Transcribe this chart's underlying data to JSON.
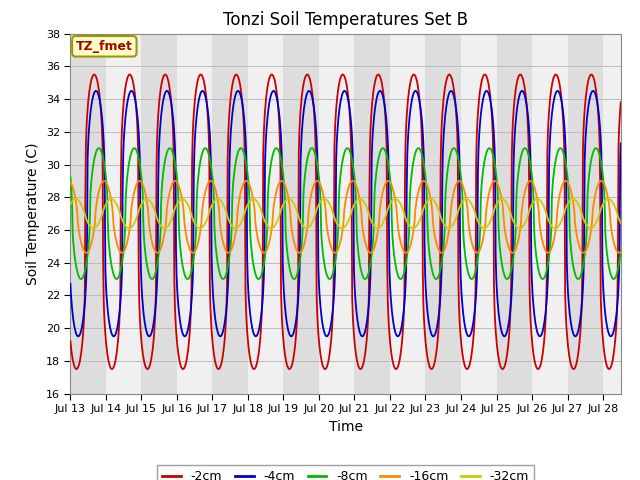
{
  "title": "Tonzi Soil Temperatures Set B",
  "xlabel": "Time",
  "ylabel": "Soil Temperature (C)",
  "ylim": [
    16,
    38
  ],
  "xtick_labels": [
    "Jul 13",
    "Jul 14",
    "Jul 15",
    "Jul 16",
    "Jul 17",
    "Jul 18",
    "Jul 19",
    "Jul 20",
    "Jul 21",
    "Jul 22",
    "Jul 23",
    "Jul 24",
    "Jul 25",
    "Jul 26",
    "Jul 27",
    "Jul 28"
  ],
  "legend_labels": [
    "-2cm",
    "-4cm",
    "-8cm",
    "-16cm",
    "-32cm"
  ],
  "line_colors": [
    "#cc0000",
    "#0000cc",
    "#00bb00",
    "#ff8800",
    "#cccc00"
  ],
  "annotation_text": "TZ_fmet",
  "annotation_color": "#aa0000",
  "annotation_bg": "#ffffcc",
  "annotation_border": "#999900",
  "bg_color": "#ffffff",
  "plot_bg_color": "#dddddd",
  "band_color": "#f0f0f0",
  "grid_color": "#bbbbbb",
  "mean_temp": 26.5,
  "amplitudes": [
    9.0,
    7.5,
    4.0,
    2.2,
    0.9
  ],
  "phase_shifts_days": [
    0.42,
    0.47,
    0.55,
    0.7,
    0.9
  ],
  "peak_sharpness": [
    3.5,
    3.0,
    2.0,
    1.5,
    1.2
  ],
  "title_fontsize": 12,
  "axis_label_fontsize": 10,
  "tick_fontsize": 8,
  "legend_fontsize": 9,
  "line_width": 1.3,
  "n_points": 960,
  "days": 15.5,
  "mean_adj": [
    0.0,
    0.5,
    0.5,
    0.3,
    0.5
  ]
}
